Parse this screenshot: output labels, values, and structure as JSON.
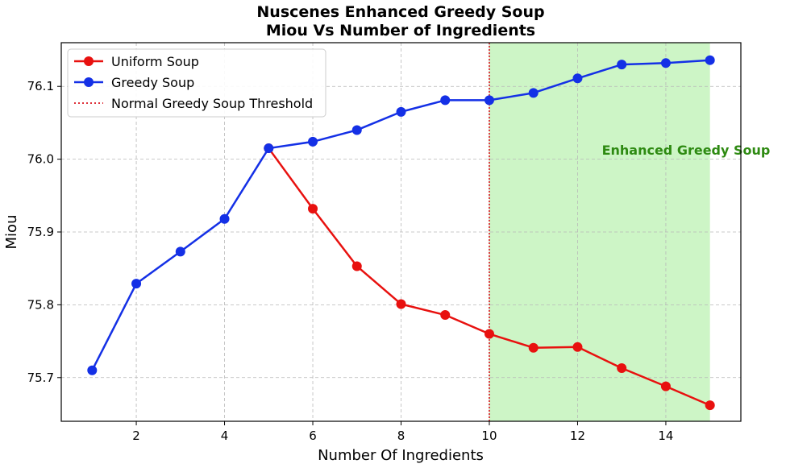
{
  "chart_data": {
    "type": "line",
    "title_line1": "Nuscenes Enhanced Greedy Soup",
    "title_line2": "Miou Vs Number of Ingredients",
    "xlabel": "Number Of Ingredients",
    "ylabel": "Miou",
    "xlim": [
      0.3,
      15.7
    ],
    "ylim": [
      75.64,
      76.16
    ],
    "xticks": [
      2,
      4,
      6,
      8,
      10,
      12,
      14
    ],
    "yticks": [
      75.7,
      75.8,
      75.9,
      76.0,
      76.1
    ],
    "grid": true,
    "legend_position": "top-left",
    "series": [
      {
        "name": "Uniform Soup",
        "color": "#e8110f",
        "x": [
          5,
          6,
          7,
          8,
          9,
          10,
          11,
          12,
          13,
          14,
          15
        ],
        "values": [
          76.015,
          75.932,
          75.853,
          75.801,
          75.786,
          75.76,
          75.741,
          75.742,
          75.713,
          75.688,
          75.662
        ]
      },
      {
        "name": "Greedy Soup",
        "color": "#1430e6",
        "x": [
          1,
          2,
          3,
          4,
          5,
          6,
          7,
          8,
          9,
          10,
          11,
          12,
          13,
          14,
          15
        ],
        "values": [
          75.71,
          75.829,
          75.873,
          75.918,
          76.015,
          76.024,
          76.04,
          76.065,
          76.081,
          76.081,
          76.091,
          76.111,
          76.13,
          76.132,
          76.136
        ]
      }
    ],
    "threshold": {
      "name": "Normal Greedy Soup Threshold",
      "x": 10,
      "color": "#d9141e"
    },
    "region": {
      "x_start": 10,
      "x_end": 15,
      "color": "#cdf5c6",
      "label": "Enhanced Greedy Soup",
      "label_color": "#2e8a12",
      "label_x": 12.55,
      "label_y": 76.006
    }
  }
}
